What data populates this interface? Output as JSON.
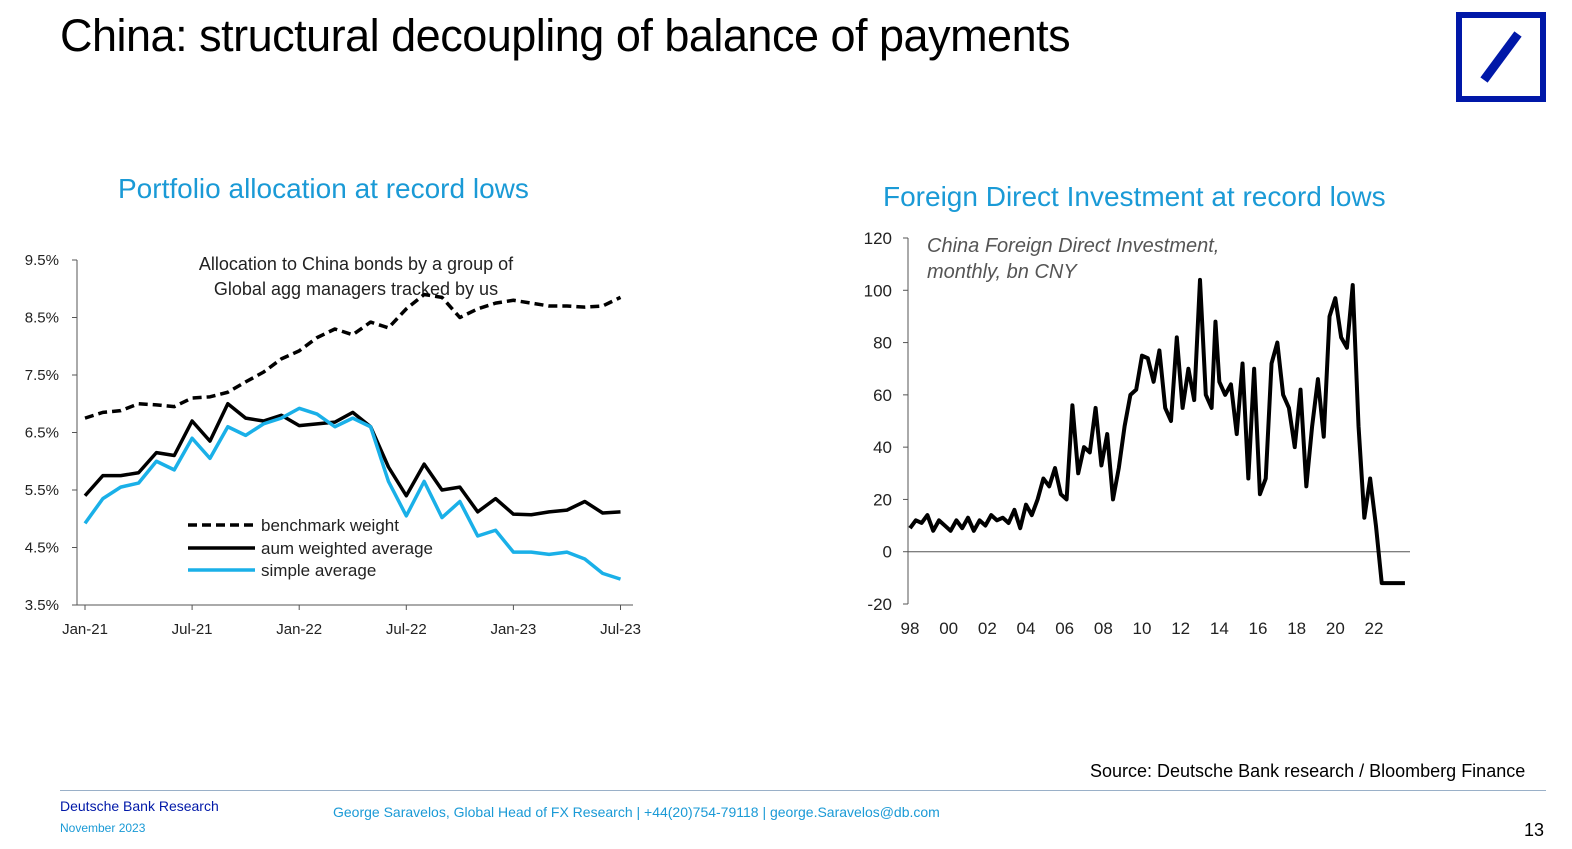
{
  "page": {
    "title": "China: structural decoupling of balance of payments",
    "source": "Source: Deutsche Bank research / Bloomberg Finance",
    "footer_org": "Deutsche Bank Research",
    "footer_date": "November 2023",
    "footer_contact": "George Saravelos,  Global Head of FX Research | +44(20)754-79118 | george.Saravelos@db.com",
    "page_number": "13",
    "logo": "deutsche-bank-logo",
    "colors": {
      "accent": "#1a9ad6",
      "brand": "#0018a8"
    }
  },
  "chart_data": [
    {
      "type": "line",
      "title": "Portfolio allocation at record lows",
      "annotation": [
        "Allocation to China bonds by a group of",
        "Global agg managers tracked by us"
      ],
      "xlabel": "",
      "ylabel": "",
      "x_ticks": [
        "Jan-21",
        "Jul-21",
        "Jan-22",
        "Jul-22",
        "Jan-23",
        "Jul-23"
      ],
      "y_ticks": [
        "9.5%",
        "8.5%",
        "7.5%",
        "6.5%",
        "5.5%",
        "4.5%",
        "3.5%"
      ],
      "ylim": [
        3.5,
        9.5
      ],
      "legend_position": "bottom-left-inside",
      "x_months_from_jan21": [
        0,
        1,
        2,
        3,
        4,
        5,
        6,
        7,
        8,
        9,
        10,
        11,
        12,
        13,
        14,
        15,
        16,
        17,
        18,
        19,
        20,
        21,
        22,
        23,
        24,
        25,
        26,
        27,
        28,
        29,
        30
      ],
      "series": [
        {
          "name": "benchmark weight",
          "style": "dashed",
          "color": "#000000",
          "values": [
            6.75,
            6.85,
            6.88,
            7.0,
            6.98,
            6.95,
            7.1,
            7.12,
            7.2,
            7.38,
            7.55,
            7.78,
            7.92,
            8.15,
            8.3,
            8.2,
            8.42,
            8.32,
            8.65,
            8.9,
            8.85,
            8.5,
            8.65,
            8.75,
            8.8,
            8.75,
            8.7,
            8.7,
            8.68,
            8.7,
            8.85
          ]
        },
        {
          "name": "aum weighted average",
          "style": "solid",
          "color": "#000000",
          "values": [
            5.4,
            5.75,
            5.75,
            5.8,
            6.15,
            6.1,
            6.7,
            6.35,
            7.0,
            6.75,
            6.7,
            6.8,
            6.62,
            6.65,
            6.68,
            6.85,
            6.6,
            5.9,
            5.4,
            5.95,
            5.5,
            5.55,
            5.12,
            5.35,
            5.08,
            5.07,
            5.12,
            5.15,
            5.3,
            5.1,
            5.12
          ]
        },
        {
          "name": "simple average",
          "style": "solid",
          "color": "#1ab0e8",
          "values": [
            4.92,
            5.35,
            5.55,
            5.62,
            6.0,
            5.85,
            6.4,
            6.05,
            6.6,
            6.45,
            6.65,
            6.75,
            6.92,
            6.82,
            6.6,
            6.75,
            6.6,
            5.65,
            5.05,
            5.65,
            5.02,
            5.3,
            4.7,
            4.8,
            4.42,
            4.42,
            4.38,
            4.42,
            4.3,
            4.05,
            3.95
          ]
        }
      ]
    },
    {
      "type": "line",
      "title": "Foreign Direct Investment at record lows",
      "annotation": [
        "China Foreign Direct Investment,",
        "monthly, bn CNY"
      ],
      "xlabel": "",
      "ylabel": "",
      "x_ticks": [
        "98",
        "00",
        "02",
        "04",
        "06",
        "08",
        "10",
        "12",
        "14",
        "16",
        "18",
        "20",
        "22"
      ],
      "y_ticks": [
        "120",
        "100",
        "80",
        "60",
        "40",
        "20",
        "0",
        "-20"
      ],
      "ylim": [
        -20,
        120
      ],
      "xlim": [
        1998,
        2024
      ],
      "series": [
        {
          "name": "China FDI",
          "color": "#000000",
          "x": [
            1998.0,
            1998.3,
            1998.6,
            1998.9,
            1999.2,
            1999.5,
            1999.8,
            2000.1,
            2000.4,
            2000.7,
            2001.0,
            2001.3,
            2001.6,
            2001.9,
            2002.2,
            2002.5,
            2002.8,
            2003.1,
            2003.4,
            2003.7,
            2004.0,
            2004.3,
            2004.6,
            2004.9,
            2005.2,
            2005.5,
            2005.8,
            2006.1,
            2006.4,
            2006.7,
            2007.0,
            2007.3,
            2007.6,
            2007.9,
            2008.2,
            2008.5,
            2008.8,
            2009.1,
            2009.4,
            2009.7,
            2010.0,
            2010.3,
            2010.6,
            2010.9,
            2011.2,
            2011.5,
            2011.8,
            2012.1,
            2012.4,
            2012.7,
            2013.0,
            2013.3,
            2013.6,
            2013.8,
            2014.0,
            2014.3,
            2014.6,
            2014.9,
            2015.2,
            2015.5,
            2015.8,
            2016.1,
            2016.4,
            2016.7,
            2017.0,
            2017.3,
            2017.6,
            2017.9,
            2018.2,
            2018.5,
            2018.8,
            2019.1,
            2019.4,
            2019.7,
            2020.0,
            2020.3,
            2020.6,
            2020.9,
            2021.2,
            2021.5,
            2021.8,
            2022.1,
            2022.4,
            2022.7,
            2023.0,
            2023.3,
            2023.6
          ],
          "values": [
            9,
            12,
            11,
            14,
            8,
            12,
            10,
            8,
            12,
            9,
            13,
            8,
            12,
            10,
            14,
            12,
            13,
            11,
            16,
            9,
            18,
            14,
            20,
            28,
            25,
            32,
            22,
            20,
            56,
            30,
            40,
            38,
            55,
            33,
            45,
            20,
            32,
            48,
            60,
            62,
            75,
            74,
            65,
            77,
            55,
            50,
            82,
            55,
            70,
            58,
            104,
            60,
            55,
            88,
            65,
            60,
            64,
            45,
            72,
            28,
            70,
            22,
            28,
            72,
            80,
            60,
            55,
            40,
            62,
            25,
            48,
            66,
            44,
            90,
            97,
            82,
            78,
            102,
            48,
            13,
            28,
            10,
            -12,
            -12,
            -12,
            -12,
            -12
          ]
        }
      ]
    }
  ]
}
